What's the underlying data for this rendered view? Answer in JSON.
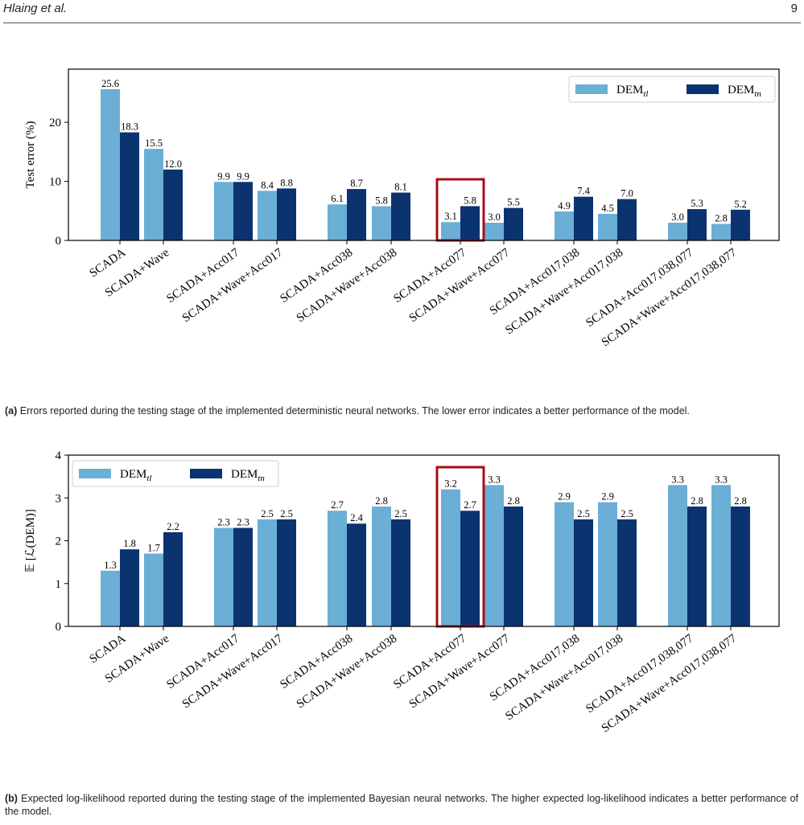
{
  "header": {
    "authors": "Hlaing et al.",
    "page_number": "9"
  },
  "colors": {
    "dem_tl": "#6baed6",
    "dem_tn": "#0b3370",
    "highlight": "#a50f15"
  },
  "captions": [
    {
      "label": "(a)",
      "text": "Errors reported during the testing stage of the implemented deterministic neural networks. The lower error indicates a better performance of the model."
    },
    {
      "label": "(b)",
      "text": "Expected log-likelihood reported during the testing stage of the implemented Bayesian neural networks. The higher expected log-likelihood indicates a better performance of the model."
    }
  ],
  "chart_data": [
    {
      "type": "bar",
      "ylabel": "Test error (%)",
      "ylim": [
        0,
        29
      ],
      "yticks": [
        0,
        10,
        20
      ],
      "legend_position": "top-right",
      "highlighted_category": "SCADA+Acc077",
      "categories": [
        "SCADA",
        "SCADA+Wave",
        "SCADA+Acc017",
        "SCADA+Wave+Acc017",
        "SCADA+Acc038",
        "SCADA+Wave+Acc038",
        "SCADA+Acc077",
        "SCADA+Wave+Acc077",
        "SCADA+Acc017,038",
        "SCADA+Wave+Acc017,038",
        "SCADA+Acc017,038,077",
        "SCADA+Wave+Acc017,038,077"
      ],
      "series": [
        {
          "name": "DEM",
          "subscript": "tl",
          "values": [
            25.6,
            15.5,
            9.9,
            8.4,
            6.1,
            5.8,
            3.1,
            3.0,
            4.9,
            4.5,
            3.0,
            2.8
          ]
        },
        {
          "name": "DEM",
          "subscript": "tn",
          "values": [
            18.3,
            12.0,
            9.9,
            8.8,
            8.7,
            8.1,
            5.8,
            5.5,
            7.4,
            7.0,
            5.3,
            5.2
          ]
        }
      ]
    },
    {
      "type": "bar",
      "ylabel": "𝔼 [ℒ(DEM)]",
      "ylim": [
        0,
        4
      ],
      "yticks": [
        0,
        1,
        2,
        3,
        4
      ],
      "legend_position": "top-left",
      "highlighted_category": "SCADA+Acc077",
      "categories": [
        "SCADA",
        "SCADA+Wave",
        "SCADA+Acc017",
        "SCADA+Wave+Acc017",
        "SCADA+Acc038",
        "SCADA+Wave+Acc038",
        "SCADA+Acc077",
        "SCADA+Wave+Acc077",
        "SCADA+Acc017,038",
        "SCADA+Wave+Acc017,038",
        "SCADA+Acc017,038,077",
        "SCADA+Wave+Acc017,038,077"
      ],
      "series": [
        {
          "name": "DEM",
          "subscript": "tl",
          "values": [
            1.3,
            1.7,
            2.3,
            2.5,
            2.7,
            2.8,
            3.2,
            3.3,
            2.9,
            2.9,
            3.3,
            3.3
          ]
        },
        {
          "name": "DEM",
          "subscript": "tn",
          "values": [
            1.8,
            2.2,
            2.3,
            2.5,
            2.4,
            2.5,
            2.7,
            2.8,
            2.5,
            2.5,
            2.8,
            2.8
          ]
        }
      ]
    }
  ]
}
